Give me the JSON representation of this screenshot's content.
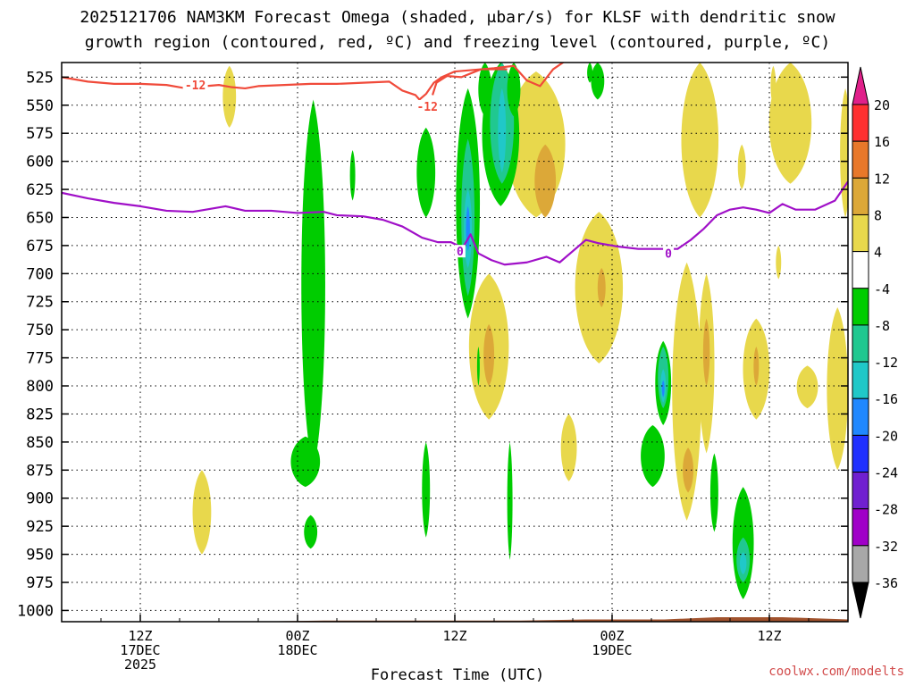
{
  "chart_data": {
    "type": "heatmap",
    "title_line1": "2025121706 NAM3KM Forecast Omega (shaded, μbar/s) for KLSF with dendritic snow",
    "title_line2": "growth region (contoured, red, ºC) and freezing level (contoured, purple, ºC)",
    "xlabel": "Forecast Time (UTC)",
    "ylabel": "",
    "credit": "coolwx.com/modelts",
    "y_axis": {
      "units": "hPa",
      "range": [
        1010,
        512
      ],
      "ticks": [
        525,
        550,
        575,
        600,
        625,
        650,
        675,
        700,
        725,
        750,
        775,
        800,
        825,
        850,
        875,
        900,
        925,
        950,
        975,
        1000
      ],
      "tick_labels": [
        "525",
        "550",
        "575",
        "600",
        "625",
        "650",
        "675",
        "700",
        "725",
        "750",
        "775",
        "800",
        "825",
        "850",
        "875",
        "900",
        "925",
        "950",
        "975",
        "1000"
      ]
    },
    "x_axis": {
      "units": "forecast hour",
      "range": [
        0,
        60
      ],
      "ticks": [
        {
          "hour": 6,
          "lines": [
            "12Z",
            "17DEC",
            "2025"
          ]
        },
        {
          "hour": 18,
          "lines": [
            "00Z",
            "18DEC"
          ]
        },
        {
          "hour": 30,
          "lines": [
            "12Z"
          ]
        },
        {
          "hour": 42,
          "lines": [
            "00Z",
            "19DEC"
          ]
        },
        {
          "hour": 54,
          "lines": [
            "12Z"
          ]
        }
      ]
    },
    "colorbar": {
      "labels": [
        "20",
        "16",
        "12",
        "8",
        "4",
        "-4",
        "-8",
        "-12",
        "-16",
        "-20",
        "-24",
        "-28",
        "-32",
        "-36"
      ],
      "bounds": [
        20,
        16,
        12,
        8,
        4,
        -4,
        -8,
        -12,
        -16,
        -20,
        -24,
        -28,
        -32,
        -36
      ],
      "colors": [
        "#ff3030",
        "#e8782a",
        "#dca838",
        "#e8d84c",
        "#ffffff",
        "#00cc00",
        "#20c890",
        "#20c8c8",
        "#2088ff",
        "#2030ff",
        "#7020d0",
        "#a000c8",
        "#a8a8a8"
      ],
      "top_arrow_color": "#e0208a",
      "bottom_arrow_color": "#000000"
    },
    "omega_regions": [
      {
        "category": "4 to 8",
        "color": "#e8d84c",
        "hour": 12.8,
        "hour_half_width": 0.5,
        "p_top": 515,
        "p_bottom": 570
      },
      {
        "category": "4 to 8",
        "color": "#e8d84c",
        "hour": 10.7,
        "hour_half_width": 0.7,
        "p_top": 875,
        "p_bottom": 950
      },
      {
        "category": "4 to 8",
        "color": "#e8d84c",
        "hour": 36.2,
        "hour_half_width": 2.2,
        "p_top": 520,
        "p_bottom": 650
      },
      {
        "category": "8 to 12",
        "color": "#dca838",
        "hour": 36.9,
        "hour_half_width": 0.8,
        "p_top": 585,
        "p_bottom": 650
      },
      {
        "category": "4 to 8",
        "color": "#e8d84c",
        "hour": 35.3,
        "hour_half_width": 0.4,
        "p_top": 540,
        "p_bottom": 610
      },
      {
        "category": "4 to 8",
        "color": "#e8d84c",
        "hour": 41.0,
        "hour_half_width": 1.8,
        "p_top": 645,
        "p_bottom": 780
      },
      {
        "category": "8 to 12",
        "color": "#dca838",
        "hour": 41.2,
        "hour_half_width": 0.3,
        "p_top": 695,
        "p_bottom": 730
      },
      {
        "category": "4 to 8",
        "color": "#e8d84c",
        "hour": 32.6,
        "hour_half_width": 1.5,
        "p_top": 700,
        "p_bottom": 830
      },
      {
        "category": "8 to 12",
        "color": "#dca838",
        "hour": 32.6,
        "hour_half_width": 0.4,
        "p_top": 745,
        "p_bottom": 800
      },
      {
        "category": "4 to 8",
        "color": "#e8d84c",
        "hour": 38.7,
        "hour_half_width": 0.6,
        "p_top": 825,
        "p_bottom": 885
      },
      {
        "category": "4 to 8",
        "color": "#e8d84c",
        "hour": 47.7,
        "hour_half_width": 1.1,
        "p_top": 690,
        "p_bottom": 920
      },
      {
        "category": "4 to 8",
        "color": "#e8d84c",
        "hour": 48.7,
        "hour_half_width": 1.4,
        "p_top": 512,
        "p_bottom": 650
      },
      {
        "category": "4 to 8",
        "color": "#e8d84c",
        "hour": 49.2,
        "hour_half_width": 0.6,
        "p_top": 700,
        "p_bottom": 860
      },
      {
        "category": "8 to 12",
        "color": "#dca838",
        "hour": 49.2,
        "hour_half_width": 0.25,
        "p_top": 740,
        "p_bottom": 800
      },
      {
        "category": "8 to 12",
        "color": "#dca838",
        "hour": 47.8,
        "hour_half_width": 0.4,
        "p_top": 855,
        "p_bottom": 895
      },
      {
        "category": "4 to 8",
        "color": "#e8d84c",
        "hour": 53.0,
        "hour_half_width": 1.0,
        "p_top": 740,
        "p_bottom": 830
      },
      {
        "category": "8 to 12",
        "color": "#dca838",
        "hour": 53.0,
        "hour_half_width": 0.2,
        "p_top": 765,
        "p_bottom": 800
      },
      {
        "category": "4 to 8",
        "color": "#e8d84c",
        "hour": 51.9,
        "hour_half_width": 0.3,
        "p_top": 585,
        "p_bottom": 625
      },
      {
        "category": "4 to 8",
        "color": "#e8d84c",
        "hour": 54.3,
        "hour_half_width": 0.2,
        "p_top": 515,
        "p_bottom": 550
      },
      {
        "category": "4 to 8",
        "color": "#e8d84c",
        "hour": 55.6,
        "hour_half_width": 1.6,
        "p_top": 512,
        "p_bottom": 620
      },
      {
        "category": "4 to 8",
        "color": "#e8d84c",
        "hour": 54.7,
        "hour_half_width": 0.2,
        "p_top": 675,
        "p_bottom": 705
      },
      {
        "category": "4 to 8",
        "color": "#e8d84c",
        "hour": 56.9,
        "hour_half_width": 0.8,
        "p_top": 782,
        "p_bottom": 820
      },
      {
        "category": "4 to 8",
        "color": "#e8d84c",
        "hour": 59.2,
        "hour_half_width": 0.8,
        "p_top": 730,
        "p_bottom": 875
      },
      {
        "category": "4 to 8",
        "color": "#e8d84c",
        "hour": 59.8,
        "hour_half_width": 0.4,
        "p_top": 535,
        "p_bottom": 650
      },
      {
        "category": "4 to 8",
        "color": "#e8d84c",
        "hour": 34.3,
        "hour_half_width": 0.2,
        "p_top": 525,
        "p_bottom": 580
      },
      {
        "category": "-4 to -8",
        "color": "#00cc00",
        "hour": 19.2,
        "hour_half_width": 0.9,
        "p_top": 545,
        "p_bottom": 875
      },
      {
        "category": "-4 to -8",
        "color": "#00cc00",
        "hour": 18.6,
        "hour_half_width": 1.1,
        "p_top": 845,
        "p_bottom": 890
      },
      {
        "category": "-4 to -8",
        "color": "#00cc00",
        "hour": 19.0,
        "hour_half_width": 0.5,
        "p_top": 915,
        "p_bottom": 945
      },
      {
        "category": "-4 to -8",
        "color": "#00cc00",
        "hour": 22.2,
        "hour_half_width": 0.2,
        "p_top": 590,
        "p_bottom": 635
      },
      {
        "category": "-4 to -8",
        "color": "#00cc00",
        "hour": 27.8,
        "hour_half_width": 0.7,
        "p_top": 570,
        "p_bottom": 650
      },
      {
        "category": "-4 to -8",
        "color": "#00cc00",
        "hour": 27.8,
        "hour_half_width": 0.3,
        "p_top": 850,
        "p_bottom": 935
      },
      {
        "category": "-4 to -8",
        "color": "#00cc00",
        "hour": 31.0,
        "hour_half_width": 0.9,
        "p_top": 535,
        "p_bottom": 740
      },
      {
        "category": "-8 to -12",
        "color": "#20c890",
        "hour": 31.0,
        "hour_half_width": 0.5,
        "p_top": 580,
        "p_bottom": 720
      },
      {
        "category": "-12 to -16",
        "color": "#20c8c8",
        "hour": 31.0,
        "hour_half_width": 0.3,
        "p_top": 625,
        "p_bottom": 695
      },
      {
        "category": "-16 to -20",
        "color": "#2088ff",
        "hour": 31.0,
        "hour_half_width": 0.15,
        "p_top": 640,
        "p_bottom": 680
      },
      {
        "category": "-4 to -8",
        "color": "#00cc00",
        "hour": 32.3,
        "hour_half_width": 0.5,
        "p_top": 512,
        "p_bottom": 560
      },
      {
        "category": "-4 to -8",
        "color": "#00cc00",
        "hour": 33.5,
        "hour_half_width": 1.4,
        "p_top": 512,
        "p_bottom": 640
      },
      {
        "category": "-8 to -12",
        "color": "#20c890",
        "hour": 33.6,
        "hour_half_width": 0.9,
        "p_top": 512,
        "p_bottom": 620
      },
      {
        "category": "-12 to -16",
        "color": "#20c8c8",
        "hour": 33.6,
        "hour_half_width": 0.3,
        "p_top": 535,
        "p_bottom": 610
      },
      {
        "category": "-4 to -8",
        "color": "#00cc00",
        "hour": 34.5,
        "hour_half_width": 0.5,
        "p_top": 512,
        "p_bottom": 560
      },
      {
        "category": "-4 to -8",
        "color": "#00cc00",
        "hour": 34.2,
        "hour_half_width": 0.2,
        "p_top": 850,
        "p_bottom": 955
      },
      {
        "category": "-4 to -8",
        "color": "#00cc00",
        "hour": 31.8,
        "hour_half_width": 0.1,
        "p_top": 765,
        "p_bottom": 800
      },
      {
        "category": "-4 to -8",
        "color": "#00cc00",
        "hour": 40.9,
        "hour_half_width": 0.5,
        "p_top": 512,
        "p_bottom": 545
      },
      {
        "category": "-4 to -8",
        "color": "#00cc00",
        "hour": 40.3,
        "hour_half_width": 0.2,
        "p_top": 512,
        "p_bottom": 530
      },
      {
        "category": "-4 to -8",
        "color": "#00cc00",
        "hour": 45.9,
        "hour_half_width": 0.6,
        "p_top": 760,
        "p_bottom": 835
      },
      {
        "category": "-8 to -12",
        "color": "#20c890",
        "hour": 45.9,
        "hour_half_width": 0.4,
        "p_top": 765,
        "p_bottom": 820
      },
      {
        "category": "-12 to -16",
        "color": "#20c8c8",
        "hour": 45.9,
        "hour_half_width": 0.2,
        "p_top": 785,
        "p_bottom": 815
      },
      {
        "category": "-16 to -20",
        "color": "#2088ff",
        "hour": 45.9,
        "hour_half_width": 0.1,
        "p_top": 795,
        "p_bottom": 810
      },
      {
        "category": "-4 to -8",
        "color": "#00cc00",
        "hour": 45.1,
        "hour_half_width": 0.9,
        "p_top": 835,
        "p_bottom": 890
      },
      {
        "category": "-4 to -8",
        "color": "#00cc00",
        "hour": 49.8,
        "hour_half_width": 0.3,
        "p_top": 860,
        "p_bottom": 930
      },
      {
        "category": "-4 to -8",
        "color": "#00cc00",
        "hour": 52.0,
        "hour_half_width": 0.8,
        "p_top": 890,
        "p_bottom": 990
      },
      {
        "category": "-8 to -12",
        "color": "#20c890",
        "hour": 52.0,
        "hour_half_width": 0.5,
        "p_top": 935,
        "p_bottom": 975
      },
      {
        "category": "-12 to -16",
        "color": "#20c8c8",
        "hour": 52.0,
        "hour_half_width": 0.25,
        "p_top": 948,
        "p_bottom": 968
      }
    ],
    "dendritic_contour": {
      "label": "-12",
      "color": "#f04a3a",
      "label_points": [
        {
          "hour": 10.2,
          "p": 532
        },
        {
          "hour": 27.9,
          "p": 551
        }
      ],
      "points": [
        [
          0,
          525
        ],
        [
          2,
          529
        ],
        [
          4,
          531
        ],
        [
          6,
          531
        ],
        [
          8,
          532
        ],
        [
          9,
          534
        ],
        [
          10,
          536
        ],
        [
          11,
          533
        ],
        [
          12,
          532
        ],
        [
          13,
          534
        ],
        [
          14,
          535
        ],
        [
          15,
          533
        ],
        [
          17,
          532
        ],
        [
          19,
          531
        ],
        [
          21,
          531
        ],
        [
          23,
          530
        ],
        [
          25,
          529
        ],
        [
          26,
          537
        ],
        [
          27,
          541
        ],
        [
          27.3,
          545
        ],
        [
          27.8,
          540
        ],
        [
          28.4,
          530
        ],
        [
          29,
          525
        ],
        [
          30,
          520
        ],
        [
          33,
          517
        ],
        [
          34.5,
          515
        ],
        [
          35.5,
          528
        ],
        [
          36.5,
          533
        ],
        [
          37.5,
          518
        ],
        [
          38.5,
          510
        ]
      ]
    },
    "dendritic_contour_2": {
      "color": "#f04a3a",
      "points": [
        [
          28.3,
          541
        ],
        [
          28.6,
          530
        ],
        [
          29.4,
          524
        ],
        [
          30.5,
          525
        ],
        [
          32,
          518
        ],
        [
          34,
          518
        ]
      ]
    },
    "freezing_contour": {
      "label": "0",
      "color": "#a010c8",
      "label_points": [
        {
          "hour": 30.4,
          "p": 680
        },
        {
          "hour": 46.3,
          "p": 682
        }
      ],
      "points": [
        [
          0,
          628
        ],
        [
          2,
          633
        ],
        [
          4,
          637
        ],
        [
          6,
          640
        ],
        [
          8,
          644
        ],
        [
          10,
          645
        ],
        [
          11,
          643
        ],
        [
          12.5,
          640
        ],
        [
          14,
          644
        ],
        [
          16,
          644
        ],
        [
          18,
          646
        ],
        [
          20,
          645
        ],
        [
          21,
          648
        ],
        [
          23,
          649
        ],
        [
          24.5,
          652
        ],
        [
          26,
          658
        ],
        [
          27.5,
          668
        ],
        [
          28.7,
          672
        ],
        [
          29.7,
          672
        ],
        [
          30.6,
          677
        ],
        [
          31.2,
          665
        ],
        [
          31.8,
          682
        ],
        [
          32.8,
          688
        ],
        [
          33.8,
          692
        ],
        [
          35.5,
          690
        ],
        [
          37,
          685
        ],
        [
          38,
          690
        ],
        [
          39,
          680
        ],
        [
          40,
          670
        ],
        [
          41,
          673
        ],
        [
          42.5,
          676
        ],
        [
          44,
          678
        ],
        [
          45.5,
          678
        ],
        [
          47,
          678
        ],
        [
          48,
          670
        ],
        [
          49,
          660
        ],
        [
          50,
          648
        ],
        [
          51,
          643
        ],
        [
          52,
          641
        ],
        [
          53,
          643
        ],
        [
          54,
          646
        ],
        [
          55,
          638
        ],
        [
          56,
          643
        ],
        [
          57.5,
          643
        ],
        [
          59,
          635
        ],
        [
          60,
          618
        ]
      ]
    },
    "terrain": {
      "color": "#a0522d",
      "points": [
        [
          0,
          1013
        ],
        [
          3,
          1013
        ],
        [
          6,
          1013
        ],
        [
          8,
          1015
        ],
        [
          10,
          1014
        ],
        [
          11,
          1012
        ],
        [
          14,
          1010
        ],
        [
          20,
          1009
        ],
        [
          25,
          1009
        ],
        [
          30,
          1009
        ],
        [
          35,
          1009
        ],
        [
          40,
          1008
        ],
        [
          46,
          1008
        ],
        [
          50,
          1006
        ],
        [
          55,
          1006
        ],
        [
          60,
          1008
        ]
      ]
    }
  }
}
